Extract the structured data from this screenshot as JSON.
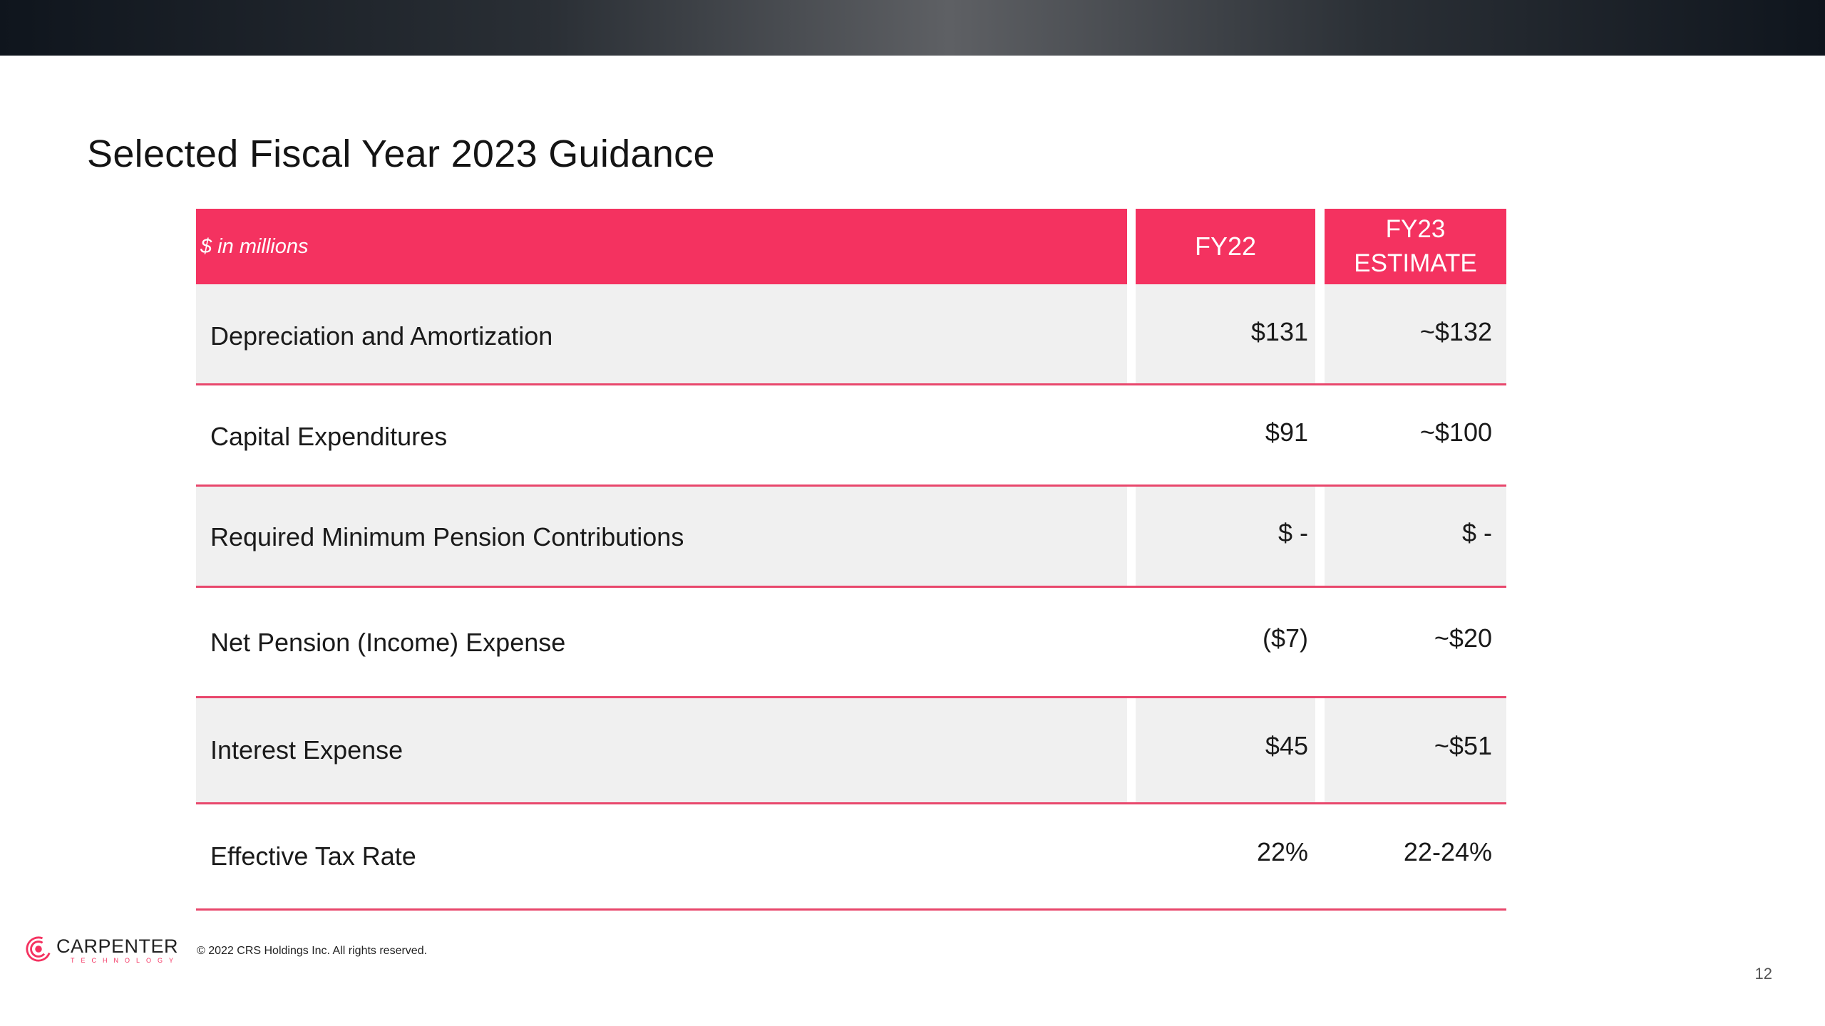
{
  "slide": {
    "title": "Selected Fiscal Year 2023 Guidance",
    "page_number": "12",
    "copyright": "© 2022 CRS Holdings Inc. All rights reserved.",
    "logo": {
      "name": "CARPENTER",
      "subtitle": "TECHNOLOGY",
      "icon": "carpenter-logo-icon",
      "brand_color": "#f43260"
    }
  },
  "table": {
    "header": {
      "label": "$ in millions",
      "fy22": "FY22",
      "fy23_line1": "FY23",
      "fy23_line2": "ESTIMATE"
    },
    "rows": [
      {
        "name": "Depreciation and Amortization",
        "fy22": "$131",
        "fy23": "~$132"
      },
      {
        "name": "Capital Expenditures",
        "fy22": "$91",
        "fy23": "~$100"
      },
      {
        "name": "Required Minimum Pension Contributions",
        "fy22": "$ -",
        "fy23": "$ -"
      },
      {
        "name": "Net Pension (Income) Expense",
        "fy22": "($7)",
        "fy23": "~$20"
      },
      {
        "name": "Interest Expense",
        "fy22": "$45",
        "fy23": "~$51"
      },
      {
        "name": "Effective Tax Rate",
        "fy22": "22%",
        "fy23": "22-24%"
      }
    ]
  },
  "colors": {
    "header_accent": "#f43260",
    "row_shade": "#f0f0f0",
    "divider": "#e8476c"
  }
}
